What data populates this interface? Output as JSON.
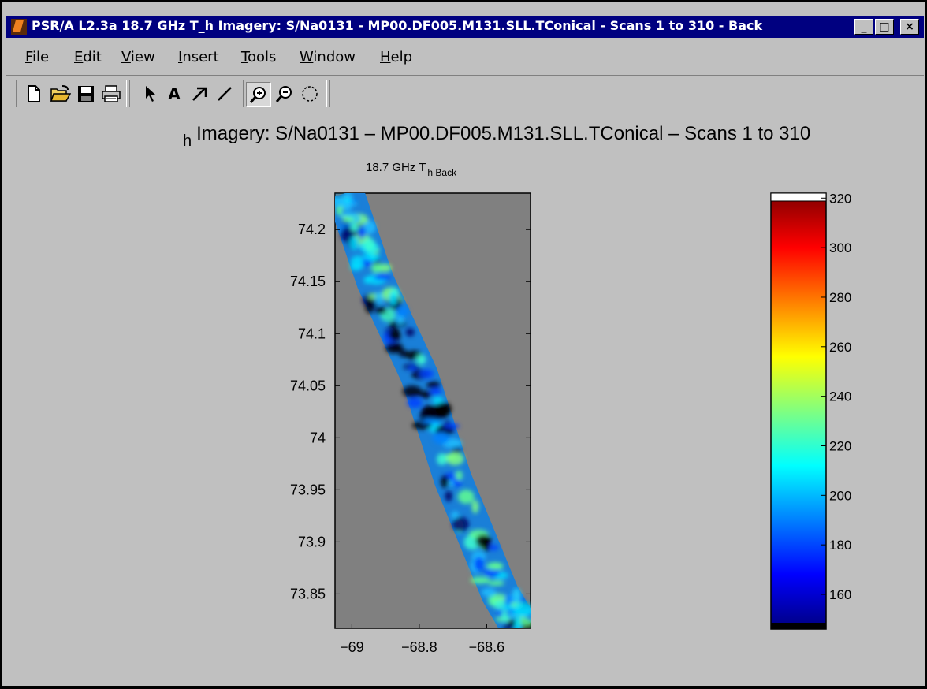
{
  "window": {
    "title": "PSR/A L2.3a 18.7 GHz T_h Imagery: S/Na0131 - MP00.DF005.M131.SLL.TConical - Scans 1 to 310 - Back",
    "controls": {
      "minimize": "_",
      "maximize": "□",
      "close": "×"
    }
  },
  "menu": {
    "items": [
      {
        "label": "File",
        "mnemonic": "F"
      },
      {
        "label": "Edit",
        "mnemonic": "E"
      },
      {
        "label": "View",
        "mnemonic": "V"
      },
      {
        "label": "Insert",
        "mnemonic": "I"
      },
      {
        "label": "Tools",
        "mnemonic": "T"
      },
      {
        "label": "Window",
        "mnemonic": "W"
      },
      {
        "label": "Help",
        "mnemonic": "H"
      }
    ]
  },
  "toolbar": {
    "tools": [
      "new-file-icon",
      "open-folder-icon",
      "save-icon",
      "print-icon",
      "select-arrow-icon",
      "text-icon",
      "arrow-icon",
      "line-icon",
      "zoom-in-icon",
      "zoom-out-icon",
      "rotate-icon"
    ],
    "text_tool_glyph": "A",
    "active_tool": "zoom-in-icon"
  },
  "figure": {
    "title_prefix": "h",
    "title": "Imagery: S/Na0131 – MP00.DF005.M131.SLL.TConical – Scans 1 to 310",
    "axes_title_main": "18.7 GHz T",
    "axes_title_sub": "h Back"
  },
  "chart_data": {
    "type": "heatmap",
    "x_ticks": [
      -69,
      -68.8,
      -68.6
    ],
    "x_tick_labels": [
      "−69",
      "−68.8",
      "−68.6"
    ],
    "xlim": [
      -69.05,
      -68.47
    ],
    "y_ticks": [
      73.85,
      73.9,
      73.95,
      74,
      74.05,
      74.1,
      74.15,
      74.2
    ],
    "y_tick_labels": [
      "73.85",
      "73.9",
      "73.95",
      "74",
      "74.05",
      "74.1",
      "74.15",
      "74.2"
    ],
    "ylim": [
      73.817,
      74.235
    ],
    "swath_centerline": [
      [
        -69.02,
        74.235
      ],
      [
        -68.93,
        74.15
      ],
      [
        -68.8,
        74.06
      ],
      [
        -68.7,
        73.96
      ],
      [
        -68.56,
        73.85
      ],
      [
        -68.5,
        73.817
      ]
    ],
    "background_color": "#808080",
    "colorbar": {
      "range": [
        146,
        322
      ],
      "ticks": [
        160,
        180,
        200,
        220,
        240,
        260,
        280,
        300,
        320
      ],
      "colormap": "jet"
    }
  }
}
